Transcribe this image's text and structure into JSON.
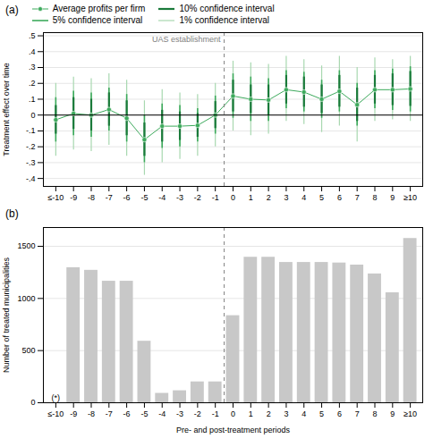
{
  "chart_data": [
    {
      "type": "line",
      "title": "(a)",
      "categories": [
        "≤-10",
        "-9",
        "-8",
        "-7",
        "-6",
        "-5",
        "-4",
        "-3",
        "-2",
        "-1",
        "0",
        "1",
        "2",
        "3",
        "4",
        "5",
        "6",
        "7",
        "8",
        "9",
        "≥10"
      ],
      "series": [
        {
          "name": "Average profits per firm",
          "type": "line",
          "marker": "circle",
          "color": "#3daa5c",
          "values": [
            -0.03,
            0.01,
            0.0,
            0.035,
            -0.02,
            -0.155,
            -0.07,
            -0.07,
            -0.065,
            0.0,
            0.12,
            0.1,
            0.095,
            0.16,
            0.145,
            0.1,
            0.15,
            0.065,
            0.16,
            0.16,
            0.165
          ]
        },
        {
          "name": "10% confidence interval",
          "type": "interval",
          "color": "#1a7a3a",
          "lower": [
            -0.12,
            -0.09,
            -0.1,
            -0.07,
            -0.13,
            -0.26,
            -0.17,
            -0.16,
            -0.14,
            -0.085,
            0.02,
            0.01,
            0.0,
            0.07,
            0.05,
            0.01,
            0.05,
            -0.04,
            0.07,
            0.06,
            0.055
          ],
          "upper": [
            0.06,
            0.11,
            0.1,
            0.14,
            0.09,
            -0.05,
            0.03,
            0.02,
            0.01,
            0.085,
            0.22,
            0.19,
            0.19,
            0.25,
            0.24,
            0.19,
            0.25,
            0.17,
            0.25,
            0.26,
            0.275
          ]
        },
        {
          "name": "5% confidence interval",
          "type": "interval",
          "color": "#3daa5c",
          "lower": [
            -0.17,
            -0.13,
            -0.14,
            -0.1,
            -0.17,
            -0.3,
            -0.21,
            -0.2,
            -0.17,
            -0.12,
            -0.02,
            -0.04,
            -0.04,
            0.04,
            0.02,
            -0.02,
            0.02,
            -0.07,
            0.04,
            0.03,
            0.02
          ],
          "upper": [
            0.11,
            0.15,
            0.14,
            0.17,
            0.13,
            0.0,
            0.07,
            0.06,
            0.04,
            0.12,
            0.26,
            0.24,
            0.23,
            0.28,
            0.27,
            0.22,
            0.28,
            0.2,
            0.28,
            0.29,
            0.305
          ]
        },
        {
          "name": "1% confidence interval",
          "type": "interval",
          "color": "#a8d8b0",
          "lower": [
            -0.26,
            -0.22,
            -0.23,
            -0.19,
            -0.26,
            -0.38,
            -0.3,
            -0.28,
            -0.26,
            -0.2,
            -0.1,
            -0.13,
            -0.12,
            -0.04,
            -0.06,
            -0.11,
            -0.07,
            -0.17,
            -0.04,
            -0.03,
            -0.04
          ],
          "upper": [
            0.2,
            0.24,
            0.23,
            0.26,
            0.22,
            0.09,
            0.16,
            0.14,
            0.13,
            0.2,
            0.34,
            0.33,
            0.32,
            0.37,
            0.35,
            0.31,
            0.37,
            0.3,
            0.36,
            0.35,
            0.37
          ]
        }
      ],
      "ylabel": "Treatment effect over time",
      "ylim": [
        -0.45,
        0.52
      ],
      "yticks": [
        {
          "value": -0.4,
          "label": "-.4"
        },
        {
          "value": -0.3,
          "label": "-.3"
        },
        {
          "value": -0.2,
          "label": "-.2"
        },
        {
          "value": -0.1,
          "label": "-.1"
        },
        0,
        {
          "value": 0.1,
          "label": ".1"
        },
        {
          "value": 0.2,
          "label": ".2"
        },
        {
          "value": 0.3,
          "label": ".3"
        },
        {
          "value": 0.4,
          "label": ".4"
        },
        {
          "value": 0.5,
          "label": ".5"
        }
      ],
      "grid": true,
      "legend": "top",
      "vline_between": [
        "-1",
        "0"
      ],
      "annotations": [
        {
          "text": "UAS establishment"
        }
      ]
    },
    {
      "type": "bar",
      "title": "(b)",
      "categories": [
        "≤-10",
        "-9",
        "-8",
        "-7",
        "-6",
        "-5",
        "-4",
        "-3",
        "-2",
        "-1",
        "0",
        "1",
        "2",
        "3",
        "4",
        "5",
        "6",
        "7",
        "8",
        "9",
        "≥10"
      ],
      "values": [
        0,
        1295,
        1270,
        1165,
        1165,
        590,
        90,
        115,
        200,
        200,
        835,
        1395,
        1395,
        1345,
        1345,
        1345,
        1340,
        1320,
        1235,
        1055,
        1575
      ],
      "color": "#c8c8c8",
      "ylabel": "Number of treated municipalities",
      "xlabel": "Pre- and post-treatment periods",
      "ylim": [
        0,
        1680
      ],
      "yticks": [
        0,
        500,
        1000,
        1500
      ],
      "grid": true,
      "vline_between": [
        "-1",
        "0"
      ],
      "annotations": [
        {
          "text": "(*)",
          "category": "≤-10"
        }
      ]
    }
  ]
}
